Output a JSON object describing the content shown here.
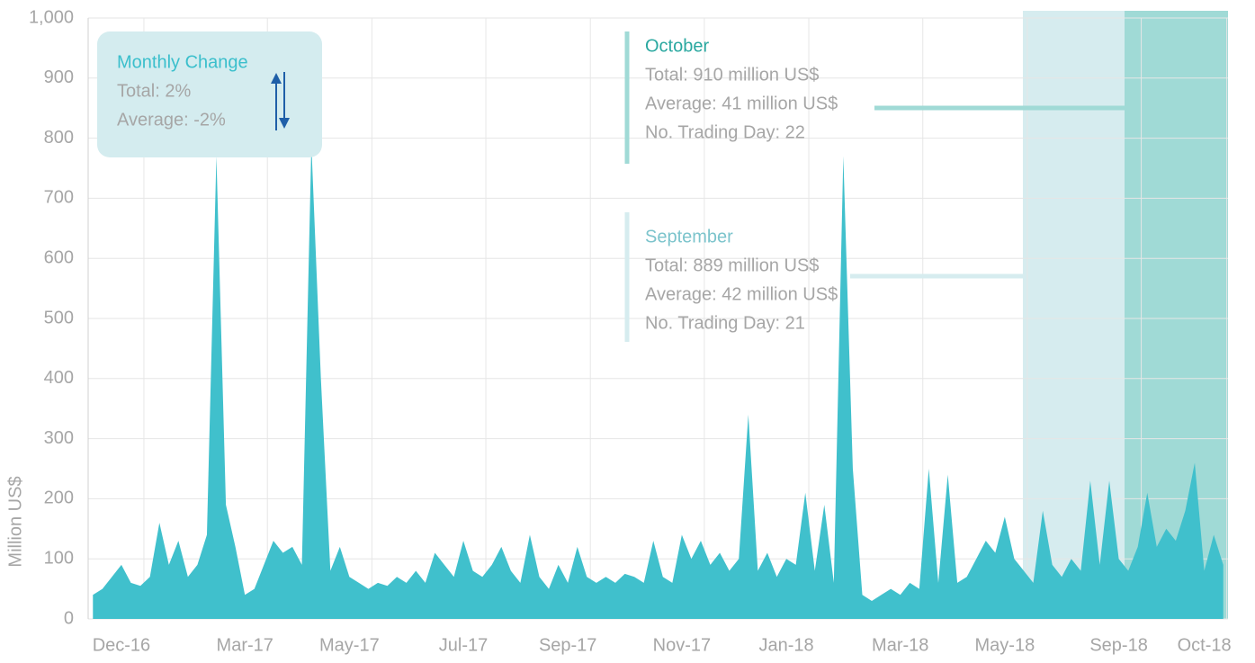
{
  "chart_data": {
    "type": "area",
    "y_label": "Million US$",
    "color": "#40c0cc",
    "ylim": [
      0,
      1000
    ],
    "yticks": [
      0,
      100,
      200,
      300,
      400,
      500,
      600,
      700,
      800,
      900,
      {
        "value": 1000,
        "label": "1,000"
      }
    ],
    "grid": true,
    "categories": [
      null,
      null,
      null,
      "Dec-16",
      null,
      null,
      null,
      null,
      null,
      null,
      null,
      null,
      null,
      null,
      null,
      null,
      "Mar-17",
      null,
      null,
      null,
      null,
      null,
      null,
      null,
      null,
      null,
      null,
      "May-17",
      null,
      null,
      null,
      null,
      null,
      null,
      null,
      null,
      null,
      null,
      null,
      "Jul-17",
      null,
      null,
      null,
      null,
      null,
      null,
      null,
      null,
      null,
      null,
      "Sep-17",
      null,
      null,
      null,
      null,
      null,
      null,
      null,
      null,
      null,
      null,
      null,
      "Nov-17",
      null,
      null,
      null,
      null,
      null,
      null,
      null,
      null,
      null,
      null,
      "Jan-18",
      null,
      null,
      null,
      null,
      null,
      null,
      null,
      null,
      null,
      null,
      null,
      "Mar-18",
      null,
      null,
      null,
      null,
      null,
      null,
      null,
      null,
      null,
      null,
      "May-18",
      null,
      null,
      null,
      null,
      null,
      null,
      null,
      null,
      null,
      null,
      null,
      "Sep-18",
      null,
      null,
      null,
      null,
      null,
      null,
      null,
      null,
      "Oct-18",
      null,
      null
    ],
    "values": [
      40,
      50,
      70,
      90,
      60,
      55,
      70,
      160,
      90,
      130,
      70,
      90,
      140,
      770,
      190,
      120,
      40,
      50,
      90,
      130,
      110,
      120,
      90,
      790,
      400,
      80,
      120,
      70,
      60,
      50,
      60,
      55,
      70,
      60,
      80,
      60,
      110,
      90,
      70,
      130,
      80,
      70,
      90,
      120,
      80,
      60,
      140,
      70,
      50,
      90,
      60,
      120,
      70,
      60,
      70,
      60,
      75,
      70,
      60,
      130,
      70,
      60,
      140,
      100,
      130,
      90,
      110,
      80,
      100,
      340,
      80,
      110,
      70,
      100,
      90,
      210,
      80,
      190,
      60,
      770,
      250,
      40,
      30,
      40,
      50,
      40,
      60,
      50,
      250,
      60,
      240,
      60,
      70,
      100,
      130,
      110,
      170,
      100,
      80,
      60,
      180,
      90,
      70,
      100,
      80,
      230,
      90,
      230,
      100,
      80,
      120,
      210,
      120,
      150,
      130,
      180,
      260,
      80,
      140,
      90
    ],
    "monthly_change": {
      "title": "Monthly Change",
      "total": "Total: 2%",
      "average": "Average: -2%"
    },
    "annotations": [
      {
        "name": "October",
        "total": "Total: 910 million US$",
        "average": "Average: 41 million US$",
        "days": "No. Trading Day: 22",
        "color": "#a0dad6",
        "title_color": "#2aa8a0"
      },
      {
        "name": "September",
        "total": "Total: 889 million US$",
        "average": "Average: 42 million US$",
        "days": "No. Trading Day: 21",
        "color": "#d6ecef",
        "title_color": "#7cc4cc"
      }
    ]
  }
}
